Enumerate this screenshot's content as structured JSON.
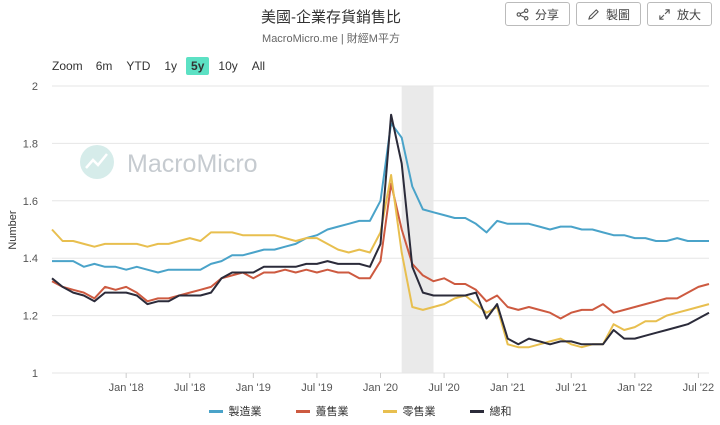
{
  "header": {
    "title": "美國-企業存貨銷售比",
    "subtitle": "MacroMicro.me | 財經M平方"
  },
  "toolbar": {
    "share_label": "分享",
    "create_label": "製圖",
    "zoom_label": "放大"
  },
  "range_selector": {
    "label": "Zoom",
    "options": [
      "6m",
      "YTD",
      "1y",
      "5y",
      "10y",
      "All"
    ],
    "selected": "5y"
  },
  "watermark": "MacroMicro",
  "chart_data": {
    "type": "line",
    "ylabel": "Number",
    "ylim": [
      1,
      2
    ],
    "yticks": [
      1,
      1.2,
      1.4,
      1.6,
      1.8,
      2
    ],
    "x_start": "2017-06",
    "x_end": "2022-08",
    "xticks": [
      "Jan '18",
      "Jul '18",
      "Jan '19",
      "Jul '19",
      "Jan '20",
      "Jul '20",
      "Jan '21",
      "Jul '21",
      "Jan '22",
      "Jul '22"
    ],
    "shaded_band": [
      "2020-03",
      "2020-06"
    ],
    "grid": "horizontal",
    "legend_position": "bottom",
    "x": [
      "2017-06",
      "2017-07",
      "2017-08",
      "2017-09",
      "2017-10",
      "2017-11",
      "2017-12",
      "2018-01",
      "2018-02",
      "2018-03",
      "2018-04",
      "2018-05",
      "2018-06",
      "2018-07",
      "2018-08",
      "2018-09",
      "2018-10",
      "2018-11",
      "2018-12",
      "2019-01",
      "2019-02",
      "2019-03",
      "2019-04",
      "2019-05",
      "2019-06",
      "2019-07",
      "2019-08",
      "2019-09",
      "2019-10",
      "2019-11",
      "2019-12",
      "2020-01",
      "2020-02",
      "2020-03",
      "2020-04",
      "2020-05",
      "2020-06",
      "2020-07",
      "2020-08",
      "2020-09",
      "2020-10",
      "2020-11",
      "2020-12",
      "2021-01",
      "2021-02",
      "2021-03",
      "2021-04",
      "2021-05",
      "2021-06",
      "2021-07",
      "2021-08",
      "2021-09",
      "2021-10",
      "2021-11",
      "2021-12",
      "2022-01",
      "2022-02",
      "2022-03",
      "2022-04",
      "2022-05",
      "2022-06",
      "2022-07",
      "2022-08"
    ],
    "series": [
      {
        "name": "製造業",
        "color": "#4aa3c9",
        "values": [
          1.39,
          1.39,
          1.39,
          1.37,
          1.38,
          1.37,
          1.37,
          1.36,
          1.37,
          1.36,
          1.35,
          1.36,
          1.36,
          1.36,
          1.36,
          1.38,
          1.39,
          1.41,
          1.41,
          1.42,
          1.43,
          1.43,
          1.44,
          1.45,
          1.47,
          1.48,
          1.5,
          1.51,
          1.52,
          1.53,
          1.53,
          1.6,
          1.87,
          1.82,
          1.65,
          1.57,
          1.56,
          1.55,
          1.54,
          1.54,
          1.52,
          1.49,
          1.53,
          1.52,
          1.52,
          1.52,
          1.51,
          1.5,
          1.51,
          1.51,
          1.5,
          1.5,
          1.49,
          1.48,
          1.48,
          1.47,
          1.47,
          1.46,
          1.46,
          1.47,
          1.46,
          1.46,
          1.46
        ]
      },
      {
        "name": "躉售業",
        "color": "#cd5a40",
        "values": [
          1.32,
          1.3,
          1.29,
          1.28,
          1.26,
          1.3,
          1.29,
          1.3,
          1.28,
          1.25,
          1.26,
          1.26,
          1.27,
          1.28,
          1.29,
          1.3,
          1.33,
          1.34,
          1.35,
          1.33,
          1.35,
          1.35,
          1.36,
          1.35,
          1.36,
          1.35,
          1.36,
          1.35,
          1.35,
          1.33,
          1.33,
          1.39,
          1.66,
          1.5,
          1.38,
          1.34,
          1.32,
          1.33,
          1.31,
          1.31,
          1.29,
          1.25,
          1.27,
          1.23,
          1.22,
          1.23,
          1.22,
          1.21,
          1.19,
          1.21,
          1.22,
          1.22,
          1.24,
          1.21,
          1.22,
          1.23,
          1.24,
          1.25,
          1.26,
          1.26,
          1.28,
          1.3,
          1.31
        ]
      },
      {
        "name": "零售業",
        "color": "#e8bf4f",
        "values": [
          1.5,
          1.46,
          1.46,
          1.45,
          1.44,
          1.45,
          1.45,
          1.45,
          1.45,
          1.44,
          1.45,
          1.45,
          1.46,
          1.47,
          1.46,
          1.49,
          1.49,
          1.49,
          1.48,
          1.48,
          1.48,
          1.48,
          1.47,
          1.46,
          1.47,
          1.47,
          1.45,
          1.43,
          1.42,
          1.43,
          1.42,
          1.49,
          1.69,
          1.42,
          1.23,
          1.22,
          1.23,
          1.24,
          1.26,
          1.27,
          1.24,
          1.21,
          1.23,
          1.1,
          1.09,
          1.09,
          1.1,
          1.11,
          1.12,
          1.1,
          1.09,
          1.1,
          1.1,
          1.17,
          1.15,
          1.16,
          1.18,
          1.18,
          1.2,
          1.21,
          1.22,
          1.23,
          1.24
        ]
      },
      {
        "name": "總和",
        "color": "#2b2b3a",
        "values": [
          1.33,
          1.3,
          1.28,
          1.27,
          1.25,
          1.28,
          1.28,
          1.28,
          1.27,
          1.24,
          1.25,
          1.25,
          1.27,
          1.27,
          1.27,
          1.28,
          1.33,
          1.35,
          1.35,
          1.35,
          1.37,
          1.37,
          1.37,
          1.37,
          1.38,
          1.38,
          1.39,
          1.38,
          1.38,
          1.38,
          1.37,
          1.45,
          1.9,
          1.73,
          1.37,
          1.28,
          1.27,
          1.27,
          1.27,
          1.27,
          1.28,
          1.19,
          1.24,
          1.12,
          1.1,
          1.12,
          1.11,
          1.1,
          1.11,
          1.11,
          1.1,
          1.1,
          1.1,
          1.15,
          1.12,
          1.12,
          1.13,
          1.14,
          1.15,
          1.16,
          1.17,
          1.19,
          1.21
        ]
      }
    ]
  }
}
